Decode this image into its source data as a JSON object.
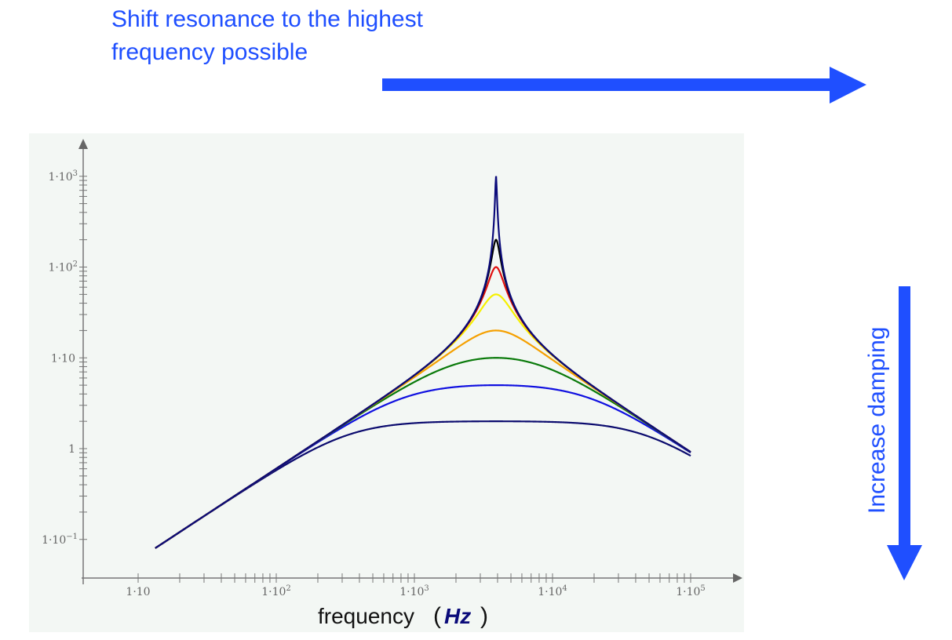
{
  "annotations": {
    "title_line1": "Shift resonance to the highest",
    "title_line2": "frequency possible",
    "vertical_label": "Increase damping",
    "arrow_color": "#1f4fff"
  },
  "chart_data": {
    "type": "line",
    "title": "",
    "xlabel": "frequency",
    "xlabel_unit": "Hz",
    "ylabel": "",
    "xscale": "log",
    "yscale": "log",
    "xlim": [
      10,
      100000
    ],
    "ylim": [
      0.1,
      1000
    ],
    "x_ticks": [
      {
        "value": 10,
        "base": "1·10",
        "exp": ""
      },
      {
        "value": 100,
        "base": "1·10",
        "exp": "2"
      },
      {
        "value": 1000,
        "base": "1·10",
        "exp": "3"
      },
      {
        "value": 10000,
        "base": "1·10",
        "exp": "4"
      },
      {
        "value": 100000,
        "base": "1·10",
        "exp": "5"
      }
    ],
    "y_ticks": [
      {
        "value": 1000,
        "base": "1·10",
        "exp": "3"
      },
      {
        "value": 100,
        "base": "1·10",
        "exp": "2"
      },
      {
        "value": 10,
        "base": "1·10",
        "exp": ""
      },
      {
        "value": 1,
        "base": "1",
        "exp": ""
      },
      {
        "value": 0.1,
        "base": "1·10",
        "exp": "−1"
      }
    ],
    "grid": false,
    "model": {
      "resonance_hz": 3900,
      "asymptote_gain": 23.5,
      "f_start_hz": 13.3,
      "f_end_hz": 100000
    },
    "series": [
      {
        "name": "peak 1000",
        "peak": 1000,
        "color": "#0b0b7a"
      },
      {
        "name": "peak 200",
        "peak": 200,
        "color": "#000000"
      },
      {
        "name": "peak 100",
        "peak": 100,
        "color": "#e01010"
      },
      {
        "name": "peak 50",
        "peak": 50,
        "color": "#f5f000"
      },
      {
        "name": "peak 20",
        "peak": 20,
        "color": "#f5a000"
      },
      {
        "name": "peak 10",
        "peak": 10,
        "color": "#0a7a0a"
      },
      {
        "name": "peak 5",
        "peak": 5,
        "color": "#1010e0"
      },
      {
        "name": "peak 2",
        "peak": 2,
        "color": "#0b0b6e"
      }
    ]
  }
}
